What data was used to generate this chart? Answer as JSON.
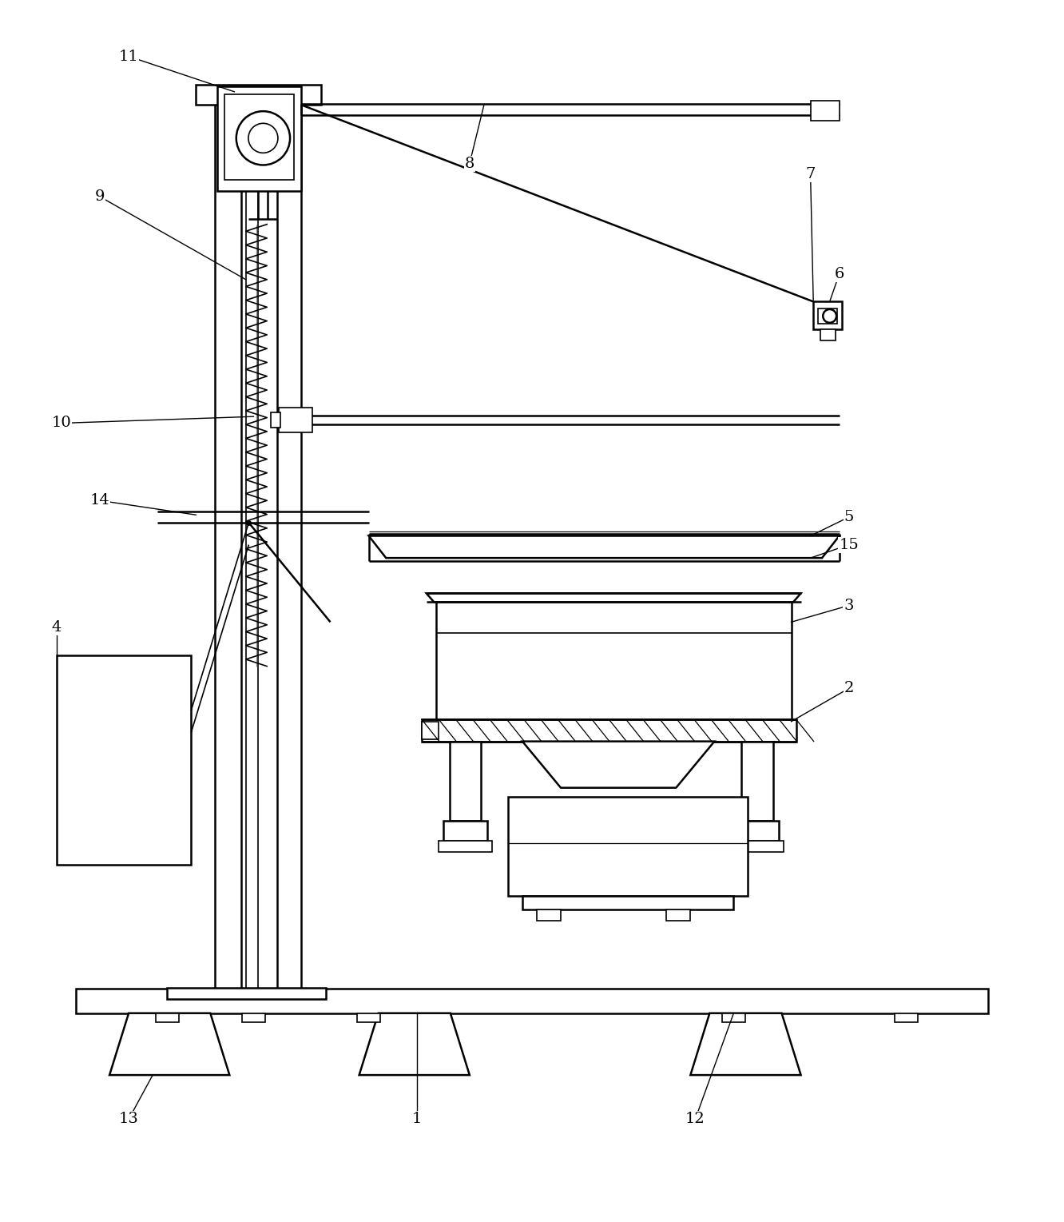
{
  "bg_color": "#ffffff",
  "line_color": "#000000",
  "fig_width": 13.32,
  "fig_height": 15.29,
  "lw": 1.8,
  "lw2": 1.2,
  "lw3": 0.9
}
